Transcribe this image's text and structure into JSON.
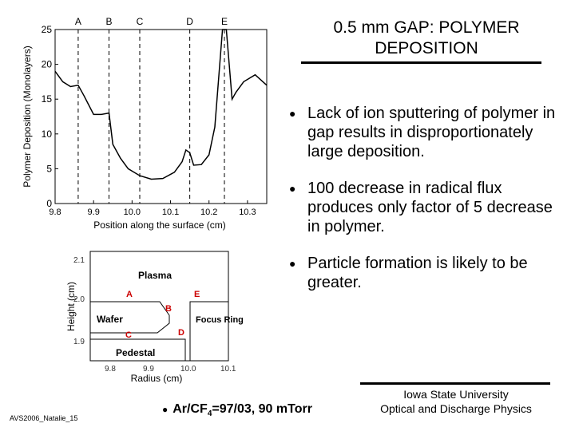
{
  "title": {
    "line1": "0.5 mm GAP: POLYMER",
    "line2": "DEPOSITION"
  },
  "bullets": [
    "Lack of ion sputtering of polymer in gap results in disproportionately large deposition.",
    "100 decrease in radical flux produces only factor of 5 decrease in polymer.",
    "Particle formation is likely to be greater."
  ],
  "bullet_symbol": "●",
  "conditions": {
    "prefix": "Ar/CF",
    "sub": "4",
    "suffix": "=97/03, 90 mTorr"
  },
  "affiliation": {
    "line1": "Iowa State University",
    "line2": "Optical and Discharge Physics"
  },
  "footer": "AVS2006_Natalie_15",
  "chart_data": {
    "type": "line",
    "ylabel": "Polymer Deposition (Monolayers)",
    "xlabel": "Position along the surface (cm)",
    "xlim": [
      9.8,
      10.35
    ],
    "ylim": [
      0,
      25
    ],
    "x_ticks": [
      "9.8",
      "9.9",
      "10.0",
      "10.1",
      "10.2",
      "10.3"
    ],
    "y_ticks": [
      "0",
      "5",
      "10",
      "15",
      "20",
      "25"
    ],
    "markers": [
      {
        "label": "A",
        "x": 9.86
      },
      {
        "label": "B",
        "x": 9.94
      },
      {
        "label": "C",
        "x": 10.02
      },
      {
        "label": "D",
        "x": 10.15
      },
      {
        "label": "E",
        "x": 10.24
      }
    ],
    "x": [
      9.8,
      9.82,
      9.84,
      9.86,
      9.875,
      9.9,
      9.92,
      9.94,
      9.95,
      9.97,
      9.99,
      10.02,
      10.05,
      10.08,
      10.11,
      10.13,
      10.14,
      10.15,
      10.16,
      10.18,
      10.2,
      10.215,
      10.225,
      10.235,
      10.245,
      10.26,
      10.27,
      10.29,
      10.32,
      10.35
    ],
    "y": [
      19,
      17.5,
      16.8,
      17,
      15.5,
      12.8,
      12.8,
      13,
      8.5,
      6.5,
      5,
      4,
      3.5,
      3.6,
      4.5,
      6,
      7.7,
      7.3,
      5.5,
      5.6,
      7,
      11,
      18,
      25,
      25,
      15,
      16,
      17.5,
      18.5,
      17
    ]
  },
  "schematic": {
    "ylabel": "Height (cm)",
    "xlabel": "Radius (cm)",
    "y_ticks": [
      "2.1",
      "2.0",
      "1.9"
    ],
    "x_ticks": [
      "9.8",
      "9.9",
      "10.0",
      "10.1"
    ],
    "regions": {
      "plasma": "Plasma",
      "wafer": "Wafer",
      "focus": "Focus Ring",
      "pedestal": "Pedestal"
    },
    "points": {
      "a": "A",
      "b": "B",
      "c": "C",
      "d": "D",
      "e": "E"
    },
    "point_color": "#cc0000"
  }
}
